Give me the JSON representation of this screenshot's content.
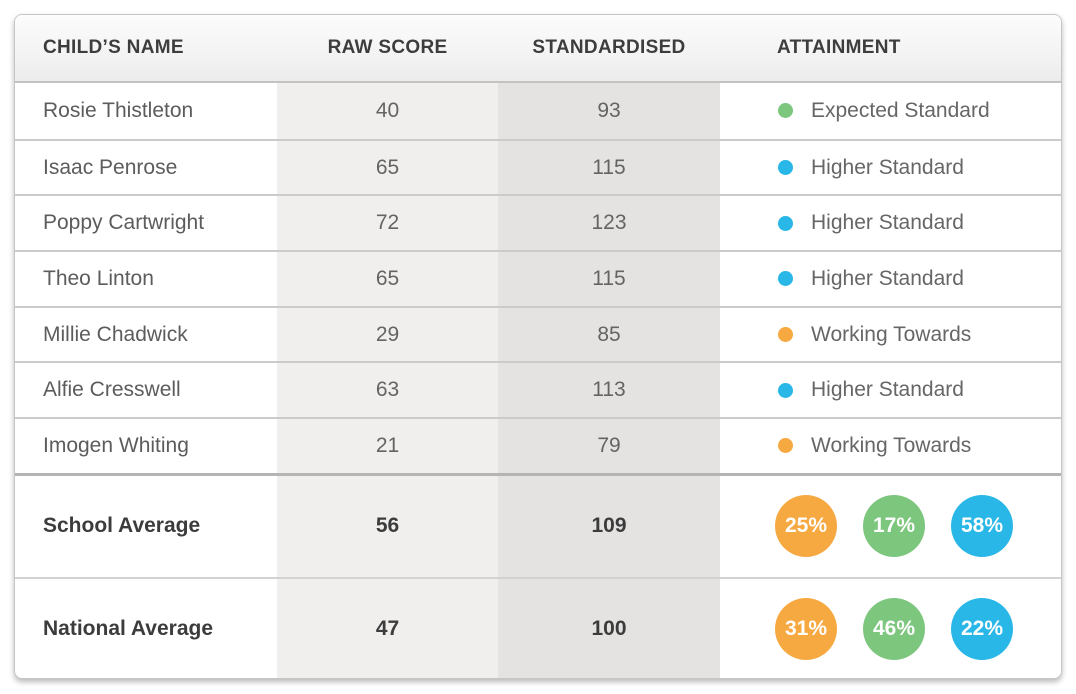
{
  "chart_data": {
    "type": "table",
    "columns": [
      "CHILD’S NAME",
      "RAW SCORE",
      "STANDARDISED",
      "ATTAINMENT"
    ],
    "rows": [
      {
        "name": "Rosie Thistleton",
        "raw_score": "40",
        "standardised": "93",
        "attainment": "Expected Standard",
        "dot_color": "#7dc67e"
      },
      {
        "name": "Isaac Penrose",
        "raw_score": "65",
        "standardised": "115",
        "attainment": "Higher Standard",
        "dot_color": "#29b7e8"
      },
      {
        "name": "Poppy Cartwright",
        "raw_score": "72",
        "standardised": "123",
        "attainment": "Higher Standard",
        "dot_color": "#29b7e8"
      },
      {
        "name": "Theo Linton",
        "raw_score": "65",
        "standardised": "115",
        "attainment": "Higher Standard",
        "dot_color": "#29b7e8"
      },
      {
        "name": "Millie Chadwick",
        "raw_score": "29",
        "standardised": "85",
        "attainment": "Working Towards",
        "dot_color": "#f7a941"
      },
      {
        "name": "Alfie Cresswell",
        "raw_score": "63",
        "standardised": "113",
        "attainment": "Higher Standard",
        "dot_color": "#29b7e8"
      },
      {
        "name": "Imogen Whiting",
        "raw_score": "21",
        "standardised": "79",
        "attainment": "Working Towards",
        "dot_color": "#f7a941"
      }
    ],
    "summary_rows": [
      {
        "label": "School Average",
        "raw_score": "56",
        "standardised": "109",
        "badges": [
          {
            "value": "25%",
            "color": "#f7a941"
          },
          {
            "value": "17%",
            "color": "#7dc67e"
          },
          {
            "value": "58%",
            "color": "#29b7e8"
          }
        ]
      },
      {
        "label": "National Average",
        "raw_score": "47",
        "standardised": "100",
        "badges": [
          {
            "value": "31%",
            "color": "#f7a941"
          },
          {
            "value": "46%",
            "color": "#7dc67e"
          },
          {
            "value": "22%",
            "color": "#29b7e8"
          }
        ]
      }
    ],
    "legend": {
      "working_towards_color": "#f7a941",
      "expected_standard_color": "#7dc67e",
      "higher_standard_color": "#29b7e8"
    }
  }
}
